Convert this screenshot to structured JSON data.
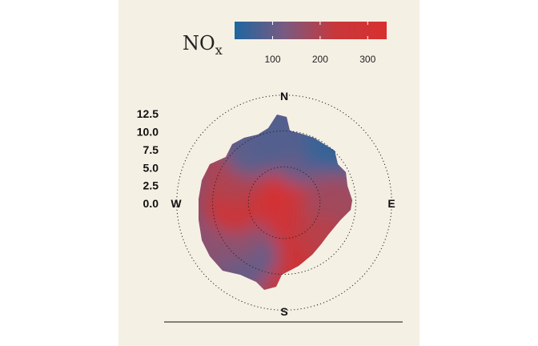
{
  "chart_data": {
    "type": "heatmap",
    "subtype": "polar-plot",
    "pollutant": {
      "base": "NO",
      "subscript": "x"
    },
    "colorbar": {
      "colors": [
        "#1f66a0",
        "#7a5a80",
        "#c8373a",
        "#d83030"
      ],
      "ticks": [
        100,
        200,
        300
      ],
      "range": [
        20,
        340
      ]
    },
    "radial_axis": {
      "ticks": [
        "12.5",
        "10.0",
        "7.5",
        "5.0",
        "2.5",
        "0.0"
      ],
      "values": [
        12.5,
        10.0,
        7.5,
        5.0,
        2.5,
        0.0
      ],
      "rings": [
        5,
        10,
        15
      ],
      "max": 15
    },
    "compass": {
      "north": "N",
      "east": "E",
      "south": "S",
      "west": "W"
    },
    "blobs": [
      {
        "angle": 0,
        "r": 0,
        "value": 320
      },
      {
        "angle": 200,
        "r": 3,
        "value": 330
      },
      {
        "angle": 250,
        "r": 5,
        "value": 310
      },
      {
        "angle": 160,
        "r": 4,
        "value": 300
      },
      {
        "angle": 120,
        "r": 4,
        "value": 260
      },
      {
        "angle": 20,
        "r": 7,
        "value": 110
      },
      {
        "angle": 50,
        "r": 9,
        "value": 60
      },
      {
        "angle": 70,
        "r": 8,
        "value": 130
      },
      {
        "angle": 95,
        "r": 7,
        "value": 180
      },
      {
        "angle": 140,
        "r": 8,
        "value": 210
      },
      {
        "angle": 180,
        "r": 9,
        "value": 250
      },
      {
        "angle": 215,
        "r": 9,
        "value": 100
      },
      {
        "angle": 240,
        "r": 8,
        "value": 150
      },
      {
        "angle": 270,
        "r": 7,
        "value": 250
      },
      {
        "angle": 300,
        "r": 8,
        "value": 200
      },
      {
        "angle": 330,
        "r": 9,
        "value": 90
      },
      {
        "angle": 355,
        "r": 10,
        "value": 80
      },
      {
        "angle": 40,
        "r": 11,
        "value": 50
      }
    ]
  }
}
